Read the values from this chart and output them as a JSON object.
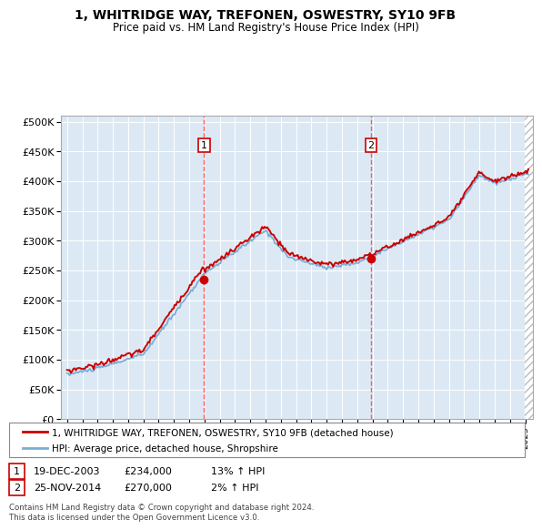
{
  "title": "1, WHITRIDGE WAY, TREFONEN, OSWESTRY, SY10 9FB",
  "subtitle": "Price paid vs. HM Land Registry's House Price Index (HPI)",
  "legend_label_red": "1, WHITRIDGE WAY, TREFONEN, OSWESTRY, SY10 9FB (detached house)",
  "legend_label_blue": "HPI: Average price, detached house, Shropshire",
  "footnote": "Contains HM Land Registry data © Crown copyright and database right 2024.\nThis data is licensed under the Open Government Licence v3.0.",
  "sale1": {
    "label": "1",
    "date": "19-DEC-2003",
    "price": "£234,000",
    "hpi": "13% ↑ HPI"
  },
  "sale2": {
    "label": "2",
    "date": "25-NOV-2014",
    "price": "£270,000",
    "hpi": "2% ↑ HPI"
  },
  "vline1_x": 2003.97,
  "vline2_x": 2014.9,
  "sale1_price": 234000,
  "sale2_price": 270000,
  "ylim": [
    0,
    510000
  ],
  "xlim_start": 1994.6,
  "xlim_end": 2025.5,
  "background_color": "#ffffff",
  "plot_bg_color": "#dce9f5",
  "red_color": "#cc0000",
  "blue_color": "#7aaed6",
  "grid_color": "#ffffff",
  "vline_color": "#ff4444"
}
